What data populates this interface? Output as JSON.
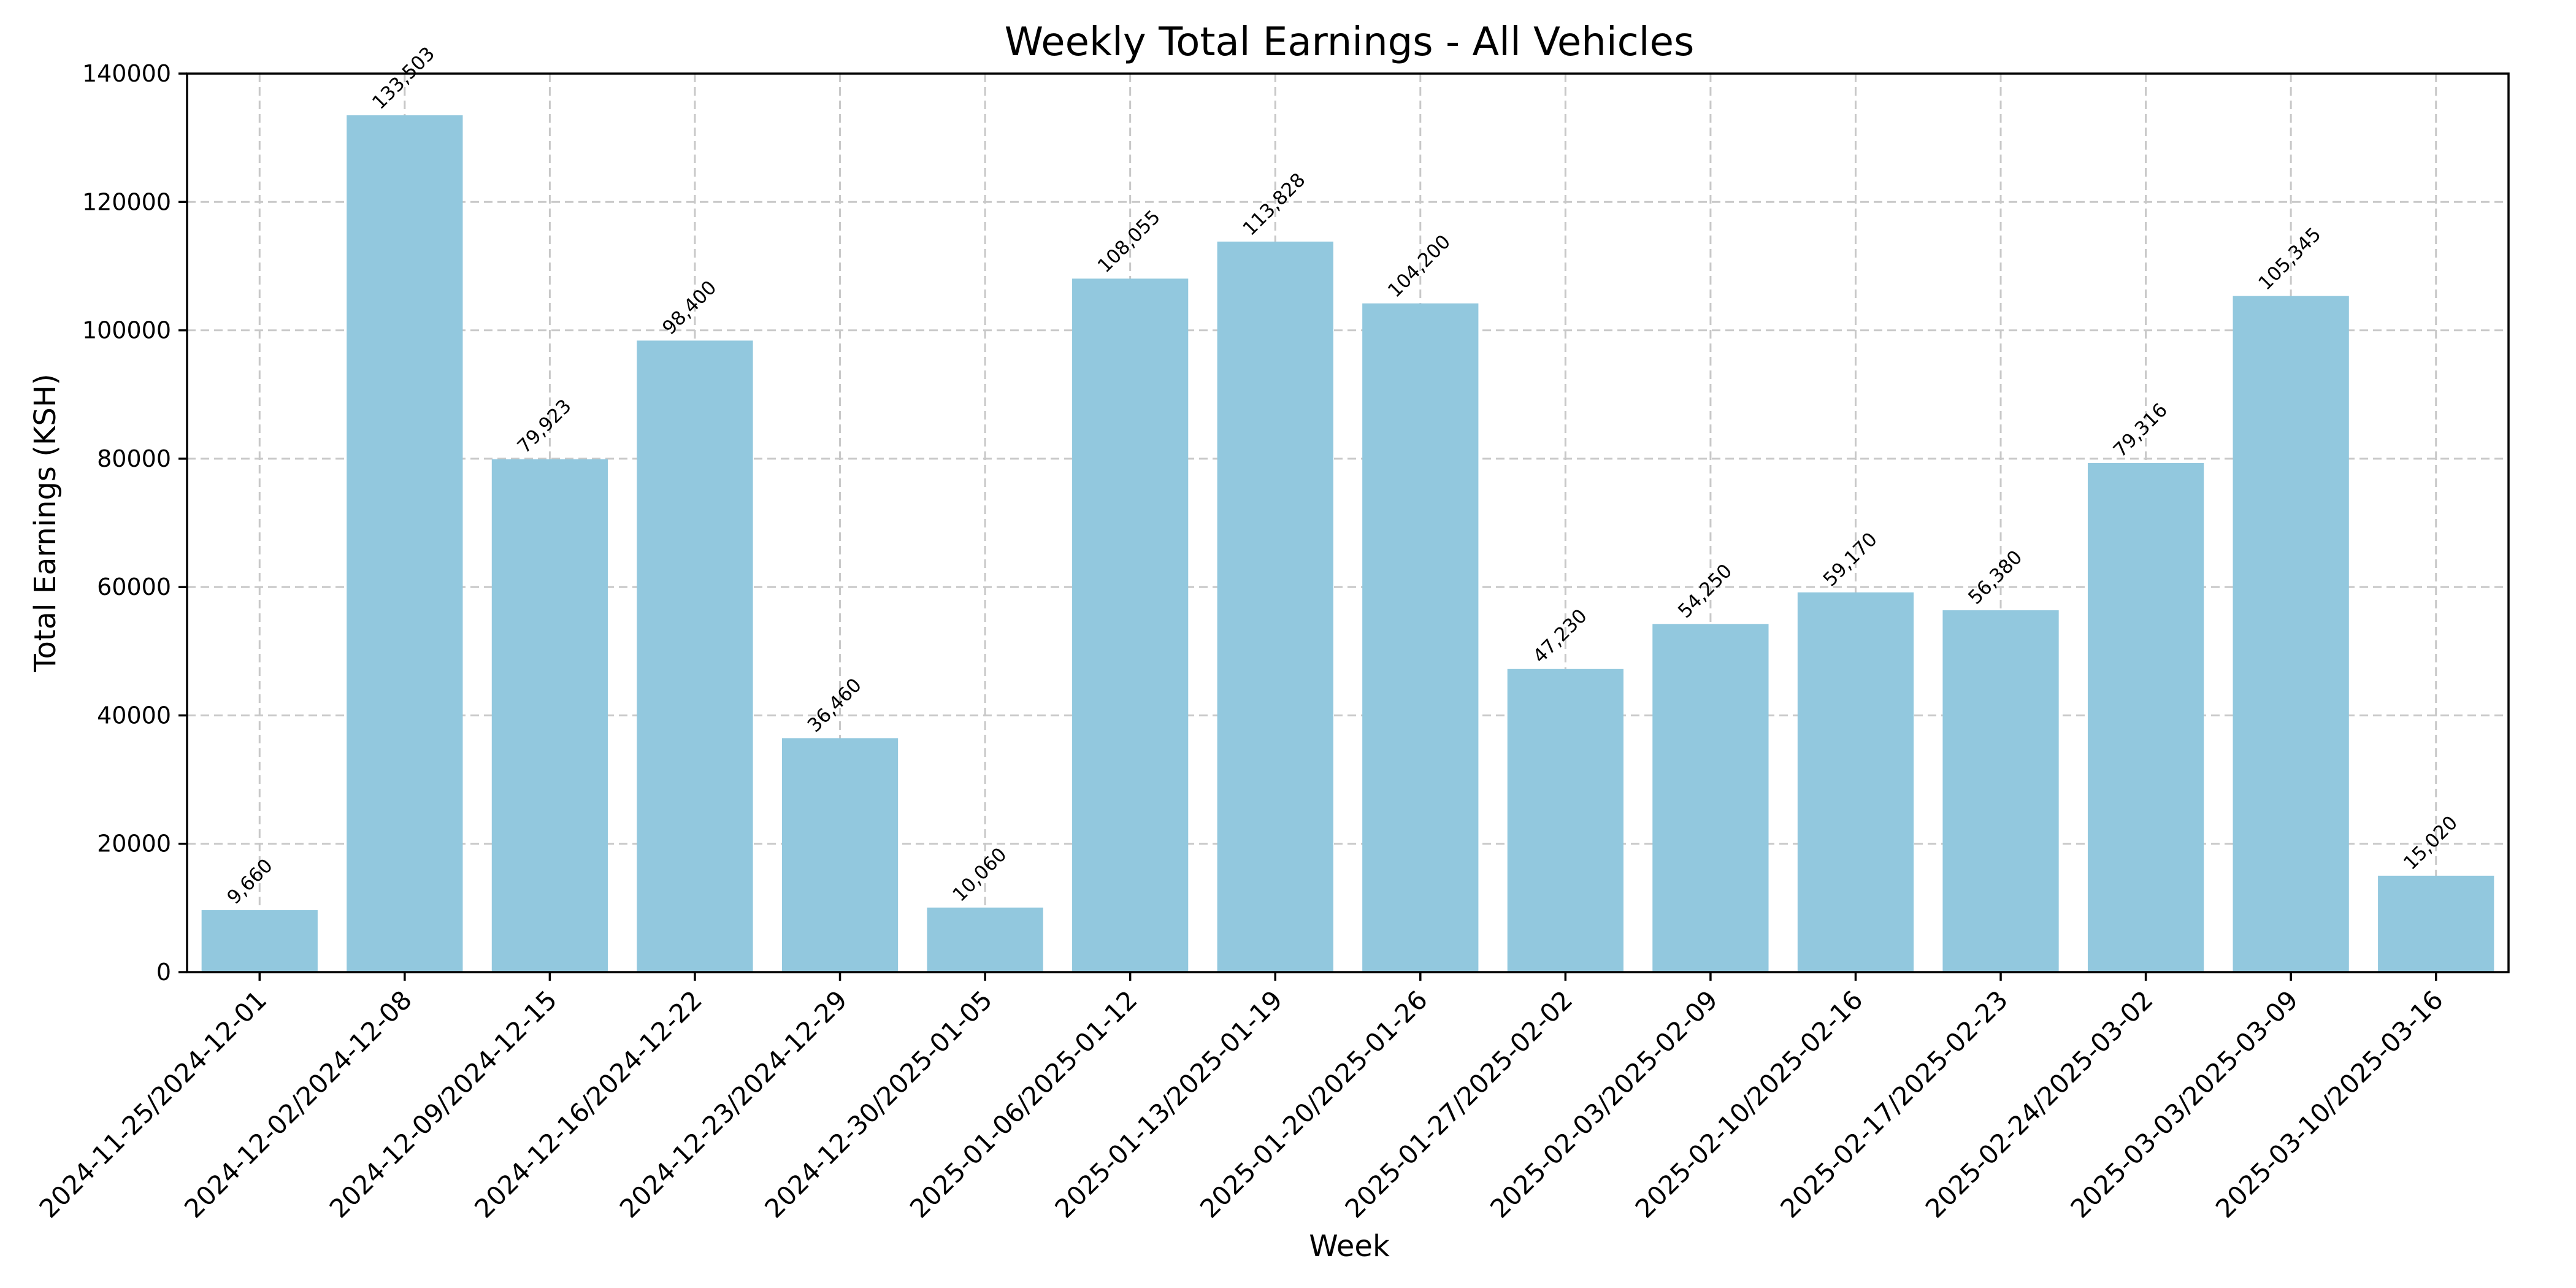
{
  "chart_data": {
    "type": "bar",
    "title": "Weekly Total Earnings - All Vehicles",
    "xlabel": "Week",
    "ylabel": "Total Earnings (KSH)",
    "ylim": [
      0,
      140000
    ],
    "yticks": [
      0,
      20000,
      40000,
      60000,
      80000,
      100000,
      120000,
      140000
    ],
    "ytick_labels": [
      "0",
      "20000",
      "40000",
      "60000",
      "80000",
      "100000",
      "120000",
      "140000"
    ],
    "categories": [
      "2024-11-25/2024-12-01",
      "2024-12-02/2024-12-08",
      "2024-12-09/2024-12-15",
      "2024-12-16/2024-12-22",
      "2024-12-23/2024-12-29",
      "2024-12-30/2025-01-05",
      "2025-01-06/2025-01-12",
      "2025-01-13/2025-01-19",
      "2025-01-20/2025-01-26",
      "2025-01-27/2025-02-02",
      "2025-02-03/2025-02-09",
      "2025-02-10/2025-02-16",
      "2025-02-17/2025-02-23",
      "2025-02-24/2025-03-02",
      "2025-03-03/2025-03-09",
      "2025-03-10/2025-03-16"
    ],
    "values": [
      9660,
      133503,
      79923,
      98400,
      36460,
      10060,
      108055,
      113828,
      104200,
      47230,
      54250,
      59170,
      56380,
      79316,
      105345,
      15020
    ],
    "data_labels": [
      "9,660",
      "133,503",
      "79,923",
      "98,400",
      "36,460",
      "10,060",
      "108,055",
      "113,828",
      "104,200",
      "47,230",
      "54,250",
      "59,170",
      "56,380",
      "79,316",
      "105,345",
      "15,020"
    ],
    "grid": true,
    "legend": "none",
    "bar_color": "#92c8de"
  }
}
